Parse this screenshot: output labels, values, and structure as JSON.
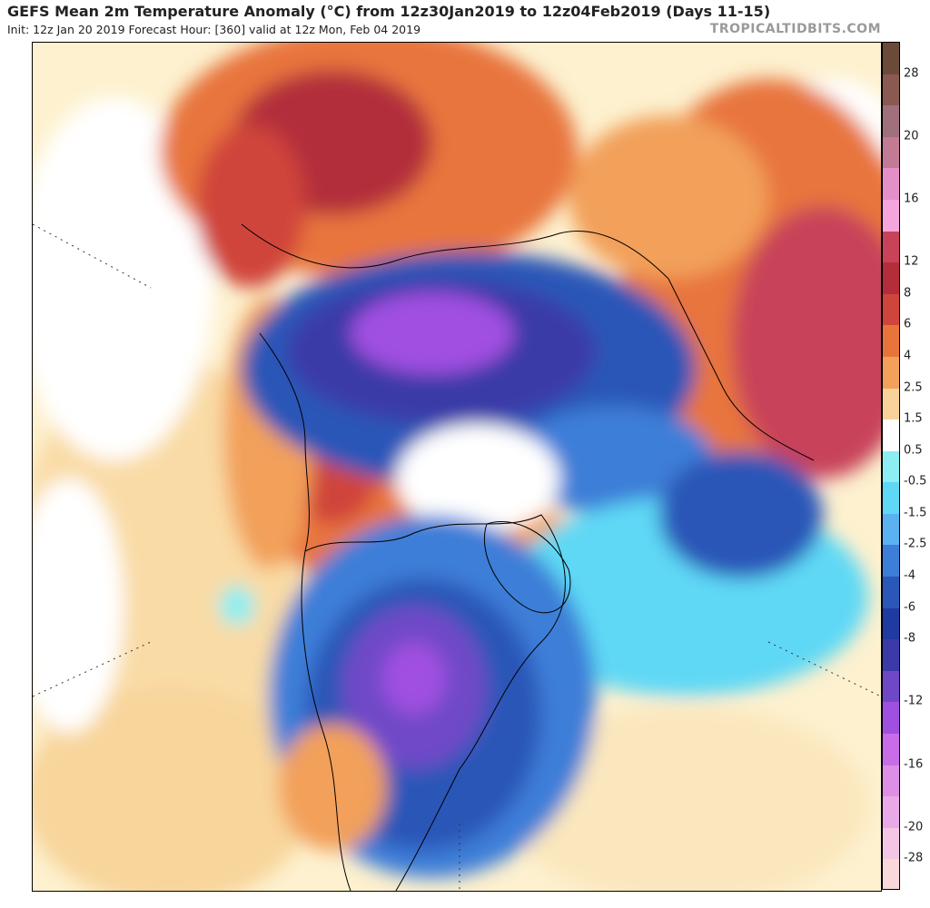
{
  "header": {
    "title": "GEFS Mean 2m Temperature Anomaly (°C) from 12z30Jan2019 to 12z04Feb2019 (Days 11-15)",
    "subtitle": "Init: 12z Jan 20 2019   Forecast Hour: [360]   valid at 12z Mon, Feb 04 2019",
    "source": "TROPICALTIDBITS.COM"
  },
  "colorbar": {
    "labels": [
      "28",
      "20",
      "16",
      "12",
      "8",
      "6",
      "4",
      "2.5",
      "1.5",
      "0.5",
      "-0.5",
      "-1.5",
      "-2.5",
      "-4",
      "-6",
      "-8",
      "-12",
      "-16",
      "-20",
      "-28"
    ],
    "colors": [
      "#6b4a3a",
      "#8a5a52",
      "#a0707c",
      "#c27a95",
      "#e58fc8",
      "#f4a6dc",
      "#c8435a",
      "#b32d3b",
      "#d0453b",
      "#e8743c",
      "#f2a05a",
      "#f7d39a",
      "#ffffff",
      "#8ceef2",
      "#5fd8f5",
      "#5ab2f0",
      "#3d7ed8",
      "#2b57b8",
      "#1f3aa0",
      "#3b3aa8",
      "#6f48c8",
      "#a050e0",
      "#c86ce8",
      "#dc8fe4",
      "#e9a9e6",
      "#f4c6e6",
      "#f8d8da"
    ]
  },
  "map": {
    "projection": "north-polar-stereographic",
    "field": "2m temperature anomaly"
  }
}
